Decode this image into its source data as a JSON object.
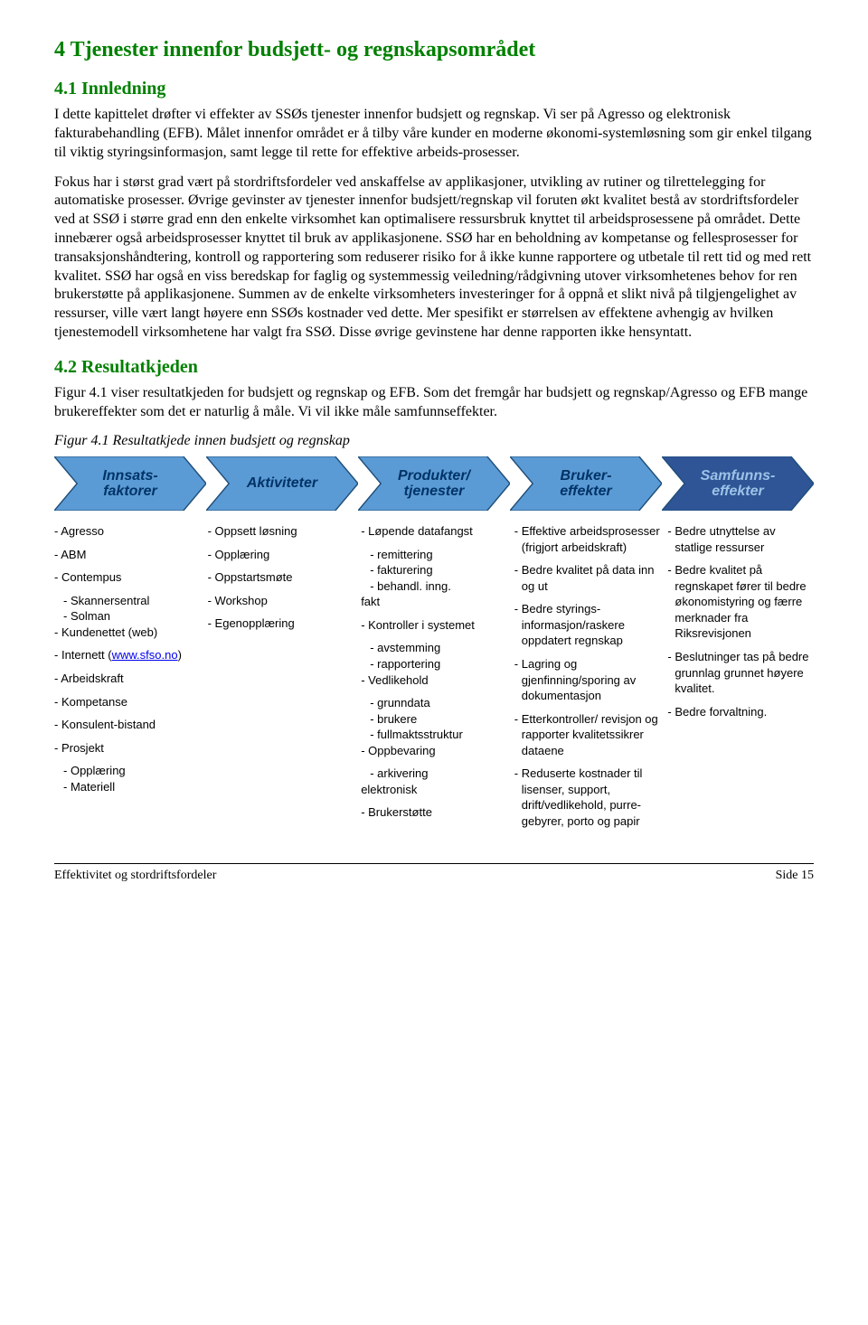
{
  "heading1": "4  Tjenester innenfor budsjett- og regnskapsområdet",
  "sec41": "4.1  Innledning",
  "p1": "I dette kapittelet drøfter vi effekter av SSØs tjenester innenfor budsjett og regnskap. Vi ser på Agresso og elektronisk fakturabehandling (EFB). Målet innenfor området er å tilby våre kunder en moderne økonomi-systemløsning som gir enkel tilgang til viktig styringsinformasjon, samt legge til rette for effektive arbeids-prosesser.",
  "p2": "Fokus har i størst grad vært på stordriftsfordeler ved anskaffelse av applikasjoner, utvikling av rutiner og tilrettelegging for automatiske prosesser. Øvrige gevinster av tjenester innenfor budsjett/regnskap vil foruten økt kvalitet bestå av stordriftsfordeler ved at SSØ i større grad enn den enkelte virksomhet kan optimalisere ressursbruk knyttet til arbeidsprosessene på området. Dette innebærer også arbeidsprosesser knyttet til bruk av applikasjonene. SSØ har en beholdning av kompetanse og fellesprosesser for transaksjonshåndtering, kontroll og rapportering som reduserer risiko for å ikke kunne rapportere og utbetale til rett tid og med rett kvalitet. SSØ har også en viss beredskap for faglig og systemmessig veiledning/rådgivning utover virksomhetenes behov for ren brukerstøtte på applikasjonene. Summen av de enkelte virksomheters investeringer for å oppnå et slikt nivå på tilgjengelighet av ressurser, ville vært langt høyere enn SSØs kostnader ved dette. Mer spesifikt er størrelsen av effektene avhengig av hvilken tjenestemodell virksomhetene har valgt fra SSØ. Disse øvrige gevinstene har denne rapporten ikke hensyntatt.",
  "sec42": "4.2  Resultatkjeden",
  "p3": "Figur 4.1 viser resultatkjeden for budsjett og regnskap og EFB. Som det fremgår har budsjett og regnskap/Agresso og EFB mange brukereffekter som det er naturlig å måle. Vi vil ikke måle samfunnseffekter.",
  "figcaption": "Figur 4.1 Resultatkjede innen budsjett og regnskap",
  "flow": {
    "stages": [
      {
        "label": "Innsats-\nfaktorer",
        "fill": "#5b9bd5",
        "text": "#003366"
      },
      {
        "label": "Aktiviteter",
        "fill": "#5b9bd5",
        "text": "#003366"
      },
      {
        "label": "Produkter/\ntjenester",
        "fill": "#5b9bd5",
        "text": "#003366"
      },
      {
        "label": "Bruker-\neffekter",
        "fill": "#5b9bd5",
        "text": "#003366"
      },
      {
        "label": "Samfunns-\neffekter",
        "fill": "#2f5597",
        "text": "#9cc3e6"
      }
    ],
    "stroke": "#1f4e79"
  },
  "columns": {
    "innsats": [
      {
        "t": "Agresso"
      },
      {
        "t": "ABM"
      },
      {
        "t": "Contempus",
        "subs": [
          "Skannersentral",
          "Solman"
        ]
      },
      {
        "t": "Kundenettet (web)"
      },
      {
        "t": "Internett",
        "link": "www.sfso.no"
      },
      {
        "t": "Arbeidskraft"
      },
      {
        "t": "Kompetanse"
      },
      {
        "t": "Konsulent-bistand"
      },
      {
        "t": "Prosjekt",
        "subs": [
          "Opplæring",
          "Materiell"
        ]
      }
    ],
    "aktiv": [
      {
        "t": "Oppsett løsning"
      },
      {
        "t": "Opplæring"
      },
      {
        "t": "Oppstartsmøte"
      },
      {
        "t": "Workshop"
      },
      {
        "t": "Egenopplæring"
      }
    ],
    "prod": [
      {
        "t": "Løpende datafangst",
        "subs": [
          "remittering",
          "fakturering",
          "behandl. inng."
        ],
        "trail": "fakt"
      },
      {
        "t": "Kontroller i systemet",
        "subs": [
          "avstemming",
          "rapportering"
        ]
      },
      {
        "t": "Vedlikehold",
        "subs": [
          "grunndata",
          "brukere",
          "fullmaktsstruktur"
        ]
      },
      {
        "t": "Oppbevaring",
        "subs": [
          "arkivering"
        ],
        "trail": "elektronisk"
      },
      {
        "t": "Brukerstøtte"
      }
    ],
    "bruker": [
      {
        "t": "Effektive arbeidsprosesser (frigjort arbeidskraft)"
      },
      {
        "t": "Bedre kvalitet på data inn og ut"
      },
      {
        "t": "Bedre styrings-informasjon/raskere oppdatert regnskap"
      },
      {
        "t": "Lagring og gjenfinning/sporing av dokumentasjon"
      },
      {
        "t": "Etterkontroller/ revisjon og rapporter kvalitetssikrer dataene"
      },
      {
        "t": "Reduserte kostnader til lisenser, support, drift/vedlikehold, purre-gebyrer, porto og papir"
      }
    ],
    "samfunn": [
      {
        "t": "Bedre utnyttelse av statlige ressurser"
      },
      {
        "t": "Bedre kvalitet på regnskapet fører til bedre økonomistyring og færre merknader fra Riksrevisjonen"
      },
      {
        "t": "Beslutninger tas på bedre grunnlag grunnet høyere kvalitet."
      },
      {
        "t": "Bedre forvaltning."
      }
    ]
  },
  "footer_left": "Effektivitet og stordriftsfordeler",
  "footer_right": "Side 15"
}
